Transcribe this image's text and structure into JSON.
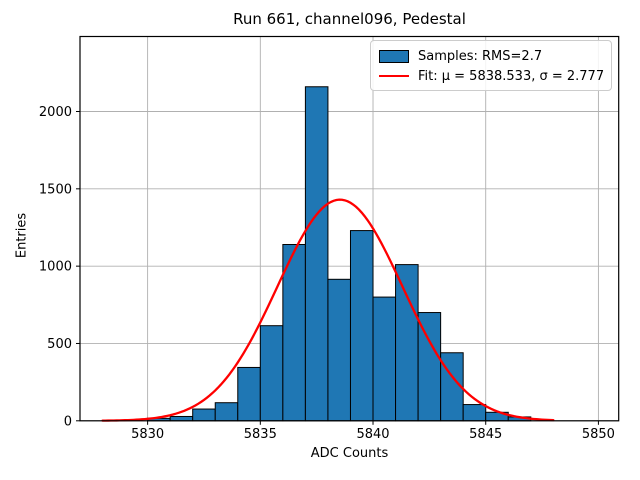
{
  "figure": {
    "background": "#ffffff",
    "axes_background": "#ffffff",
    "spine_color": "#000000"
  },
  "chart_data": {
    "type": "bar",
    "subtype": "histogram-with-gaussian-fit",
    "title": "Run 661, channel096, Pedestal",
    "xlabel": "ADC Counts",
    "ylabel": "Entries",
    "xlim": [
      5827.0,
      5850.9
    ],
    "ylim": [
      0,
      2485
    ],
    "xticks": [
      5830,
      5835,
      5840,
      5845,
      5850
    ],
    "yticks": [
      0,
      500,
      1000,
      1500,
      2000
    ],
    "grid": true,
    "grid_color": "#b0b0b0",
    "bar_color": "#1f77b4",
    "bar_edge_color": "#000000",
    "fit_color": "#ff0000",
    "bin_edges": [
      5830,
      5831,
      5832,
      5833,
      5834,
      5835,
      5836,
      5837,
      5838,
      5839,
      5840,
      5841,
      5842,
      5843,
      5844,
      5845,
      5846,
      5847
    ],
    "counts": [
      16,
      28,
      76,
      117,
      345,
      615,
      1140,
      2160,
      915,
      1230,
      800,
      1010,
      700,
      440,
      105,
      55,
      25
    ],
    "fit_curve": {
      "mu": 5838.533,
      "sigma": 2.777,
      "amplitude": 1430,
      "x_start": 5828,
      "x_end": 5848
    },
    "legend": {
      "position": "upper right",
      "entries": [
        {
          "label": "Samples: RMS=2.7",
          "marker": "patch"
        },
        {
          "label": "Fit: μ = 5838.533, σ = 2.777",
          "marker": "line"
        }
      ]
    }
  }
}
